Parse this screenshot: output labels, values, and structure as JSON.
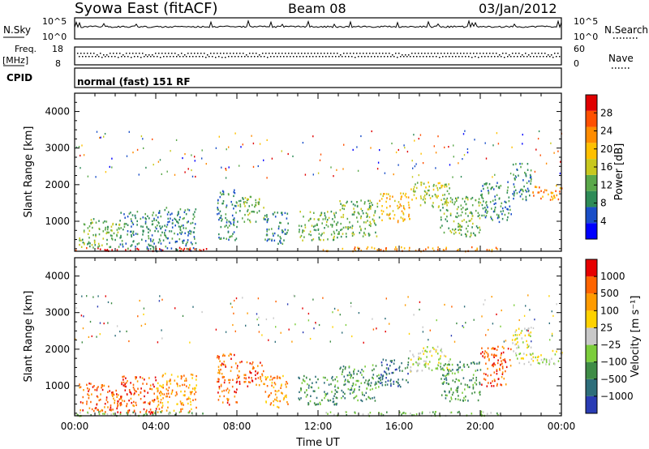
{
  "header": {
    "station": "Syowa East (fitACF)",
    "beam": "Beam 08",
    "date": "03/Jan/2012"
  },
  "aux": {
    "nsky_label": "N.Sky",
    "nsky_ticks": [
      "10^5",
      "10^0"
    ],
    "nsearch_label": "N.Search",
    "nsearch_ticks": [
      "10^5",
      "10^0"
    ],
    "freq_label": "Freq.",
    "freq_unit": "[MHz]",
    "freq_ticks": [
      "18",
      "8"
    ],
    "nave_label": "Nave",
    "nave_ticks": [
      "60",
      "0"
    ],
    "cpid_label": "CPID",
    "cpid_value": "normal (fast) 151 RF"
  },
  "chart_data": [
    {
      "type": "heatmap",
      "name": "power",
      "xlabel": "Time UT",
      "ylabel": "Slant Range [km]",
      "x_ticks": [
        "00:00",
        "04:00",
        "08:00",
        "12:00",
        "16:00",
        "20:00",
        "00:00"
      ],
      "y_ticks": [
        "1000",
        "2000",
        "3000",
        "4000"
      ],
      "xlim_hours": [
        0,
        24
      ],
      "ylim_km": [
        180,
        4500
      ],
      "colorbar_label": "Power [dB]",
      "colorbar_ticks": [
        "28",
        "24",
        "20",
        "16",
        "12",
        "8",
        "4"
      ],
      "colorscale": [
        "#0000ff",
        "#1a4fc8",
        "#2e8b57",
        "#5aa84a",
        "#c8c81e",
        "#ffc000",
        "#ff8c00",
        "#ff5000",
        "#e00000"
      ],
      "patches": [
        {
          "t": [
            0.0,
            6.5
          ],
          "r": [
            200,
            300
          ],
          "level": 8
        },
        {
          "t": [
            0.2,
            2.2
          ],
          "r": [
            300,
            1100
          ],
          "level": 3
        },
        {
          "t": [
            2.2,
            4.0
          ],
          "r": [
            250,
            1300
          ],
          "level": 2
        },
        {
          "t": [
            4.0,
            6.0
          ],
          "r": [
            200,
            1400
          ],
          "level": 2
        },
        {
          "t": [
            7.0,
            8.0
          ],
          "r": [
            500,
            1900
          ],
          "level": 2
        },
        {
          "t": [
            8.0,
            9.3
          ],
          "r": [
            1000,
            1700
          ],
          "level": 3
        },
        {
          "t": [
            9.3,
            10.5
          ],
          "r": [
            400,
            1300
          ],
          "level": 2
        },
        {
          "t": [
            11.0,
            13.0
          ],
          "r": [
            500,
            1300
          ],
          "level": 3
        },
        {
          "t": [
            13.0,
            15.0
          ],
          "r": [
            600,
            1600
          ],
          "level": 3
        },
        {
          "t": [
            15.0,
            16.5
          ],
          "r": [
            1000,
            1800
          ],
          "level": 5
        },
        {
          "t": [
            16.5,
            18.5
          ],
          "r": [
            1400,
            2100
          ],
          "level": 4
        },
        {
          "t": [
            18.0,
            20.0
          ],
          "r": [
            600,
            1700
          ],
          "level": 3
        },
        {
          "t": [
            20.0,
            21.5
          ],
          "r": [
            1000,
            2100
          ],
          "level": 2
        },
        {
          "t": [
            21.5,
            22.5
          ],
          "r": [
            1600,
            2600
          ],
          "level": 2
        },
        {
          "t": [
            22.5,
            24.0
          ],
          "r": [
            1600,
            2000
          ],
          "level": 6
        },
        {
          "t": [
            12.0,
            21.0
          ],
          "r": [
            200,
            320
          ],
          "level": 6
        }
      ]
    },
    {
      "type": "heatmap",
      "name": "velocity",
      "xlabel": "Time UT",
      "ylabel": "Slant Range [km]",
      "x_ticks": [
        "00:00",
        "04:00",
        "08:00",
        "12:00",
        "16:00",
        "20:00",
        "00:00"
      ],
      "y_ticks": [
        "1000",
        "2000",
        "3000",
        "4000"
      ],
      "xlim_hours": [
        0,
        24
      ],
      "ylim_km": [
        180,
        4500
      ],
      "colorbar_label": "Velocity [m s⁻¹]",
      "colorbar_ticks": [
        "1000",
        "500",
        "100",
        "25",
        "−25",
        "−100",
        "−500",
        "−1000"
      ],
      "colorscale": [
        "#2a3cb4",
        "#2e6e7a",
        "#3f8c46",
        "#7ccd3c",
        "#c8c8c8",
        "#ffd200",
        "#ff9b00",
        "#ff6400",
        "#e60000"
      ],
      "patches": [
        {
          "t": [
            0.0,
            6.5
          ],
          "r": [
            200,
            320
          ],
          "level": 3
        },
        {
          "t": [
            0.2,
            2.2
          ],
          "r": [
            300,
            1100
          ],
          "level": 7
        },
        {
          "t": [
            2.2,
            4.0
          ],
          "r": [
            250,
            1300
          ],
          "level": 7
        },
        {
          "t": [
            4.0,
            6.0
          ],
          "r": [
            300,
            1400
          ],
          "level": 6
        },
        {
          "t": [
            7.0,
            8.0
          ],
          "r": [
            500,
            1900
          ],
          "level": 7
        },
        {
          "t": [
            8.0,
            9.3
          ],
          "r": [
            1000,
            1700
          ],
          "level": 7
        },
        {
          "t": [
            9.3,
            10.5
          ],
          "r": [
            400,
            1300
          ],
          "level": 6
        },
        {
          "t": [
            11.0,
            13.0
          ],
          "r": [
            500,
            1300
          ],
          "level": 2
        },
        {
          "t": [
            13.0,
            15.0
          ],
          "r": [
            600,
            1600
          ],
          "level": 2
        },
        {
          "t": [
            15.0,
            16.5
          ],
          "r": [
            1000,
            1800
          ],
          "level": 1
        },
        {
          "t": [
            16.5,
            18.5
          ],
          "r": [
            1400,
            2100
          ],
          "level": 4
        },
        {
          "t": [
            18.0,
            20.0
          ],
          "r": [
            600,
            1700
          ],
          "level": 2
        },
        {
          "t": [
            20.0,
            21.5
          ],
          "r": [
            1000,
            2100
          ],
          "level": 7
        },
        {
          "t": [
            21.5,
            22.5
          ],
          "r": [
            1600,
            2600
          ],
          "level": 4
        },
        {
          "t": [
            22.5,
            24.0
          ],
          "r": [
            1600,
            2000
          ],
          "level": 4
        },
        {
          "t": [
            12.0,
            21.0
          ],
          "r": [
            200,
            320
          ],
          "level": 3
        }
      ]
    }
  ]
}
